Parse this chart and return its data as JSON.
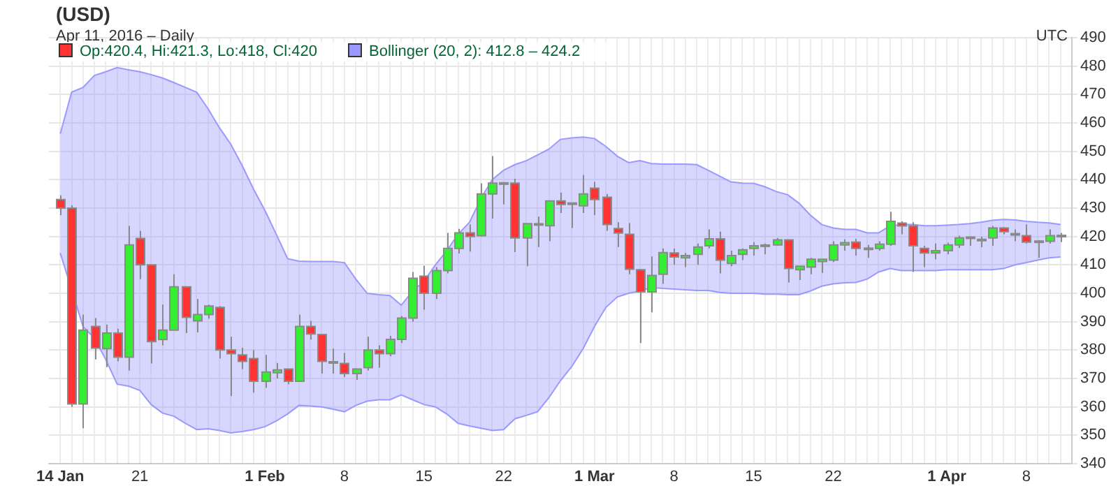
{
  "chart_data": {
    "type": "candlestick",
    "title": "(USD)",
    "subtitle": "Apr 11, 2016 – Daily",
    "annotations": [
      "UTC"
    ],
    "legend": "top left",
    "grid": true,
    "x": [
      "2016-01-14",
      "2016-01-15",
      "2016-01-16",
      "2016-01-17",
      "2016-01-18",
      "2016-01-19",
      "2016-01-20",
      "2016-01-21",
      "2016-01-22",
      "2016-01-23",
      "2016-01-24",
      "2016-01-25",
      "2016-01-26",
      "2016-01-27",
      "2016-01-28",
      "2016-01-29",
      "2016-01-30",
      "2016-01-31",
      "2016-02-01",
      "2016-02-02",
      "2016-02-03",
      "2016-02-04",
      "2016-02-05",
      "2016-02-06",
      "2016-02-07",
      "2016-02-08",
      "2016-02-09",
      "2016-02-10",
      "2016-02-11",
      "2016-02-12",
      "2016-02-13",
      "2016-02-14",
      "2016-02-15",
      "2016-02-16",
      "2016-02-17",
      "2016-02-18",
      "2016-02-19",
      "2016-02-20",
      "2016-02-21",
      "2016-02-22",
      "2016-02-23",
      "2016-02-24",
      "2016-02-25",
      "2016-02-26",
      "2016-02-27",
      "2016-02-28",
      "2016-02-29",
      "2016-03-01",
      "2016-03-02",
      "2016-03-03",
      "2016-03-04",
      "2016-03-05",
      "2016-03-06",
      "2016-03-07",
      "2016-03-08",
      "2016-03-09",
      "2016-03-10",
      "2016-03-11",
      "2016-03-12",
      "2016-03-13",
      "2016-03-14",
      "2016-03-15",
      "2016-03-16",
      "2016-03-17",
      "2016-03-18",
      "2016-03-19",
      "2016-03-20",
      "2016-03-21",
      "2016-03-22",
      "2016-03-23",
      "2016-03-24",
      "2016-03-25",
      "2016-03-26",
      "2016-03-27",
      "2016-03-28",
      "2016-03-29",
      "2016-03-30",
      "2016-03-31",
      "2016-04-01",
      "2016-04-02",
      "2016-04-03",
      "2016-04-04",
      "2016-04-05",
      "2016-04-06",
      "2016-04-07",
      "2016-04-08",
      "2016-04-09",
      "2016-04-10",
      "2016-04-11"
    ],
    "xlim": [
      "2016-01-13",
      "2016-04-12"
    ],
    "xticks": [
      {
        "value": "2016-01-14",
        "label": "14 Jan"
      },
      {
        "value": "2016-01-15",
        "label": null
      },
      {
        "value": "2016-01-16",
        "label": null
      },
      {
        "value": "2016-01-17",
        "label": null
      },
      {
        "value": "2016-01-18",
        "label": null
      },
      {
        "value": "2016-01-19",
        "label": null
      },
      {
        "value": "2016-01-20",
        "label": null
      },
      {
        "value": "2016-01-21",
        "label": "21"
      },
      {
        "value": "2016-01-22",
        "label": null
      },
      {
        "value": "2016-01-23",
        "label": null
      },
      {
        "value": "2016-01-24",
        "label": null
      },
      {
        "value": "2016-01-25",
        "label": null
      },
      {
        "value": "2016-01-26",
        "label": null
      },
      {
        "value": "2016-01-27",
        "label": null
      },
      {
        "value": "2016-01-28",
        "label": null
      },
      {
        "value": "2016-01-29",
        "label": null
      },
      {
        "value": "2016-01-30",
        "label": null
      },
      {
        "value": "2016-01-31",
        "label": null
      },
      {
        "value": "2016-02-01",
        "label": "1 Feb"
      },
      {
        "value": "2016-02-02",
        "label": null
      },
      {
        "value": "2016-02-03",
        "label": null
      },
      {
        "value": "2016-02-04",
        "label": null
      },
      {
        "value": "2016-02-05",
        "label": null
      },
      {
        "value": "2016-02-06",
        "label": null
      },
      {
        "value": "2016-02-07",
        "label": null
      },
      {
        "value": "2016-02-08",
        "label": "8"
      },
      {
        "value": "2016-02-09",
        "label": null
      },
      {
        "value": "2016-02-10",
        "label": null
      },
      {
        "value": "2016-02-11",
        "label": null
      },
      {
        "value": "2016-02-12",
        "label": null
      },
      {
        "value": "2016-02-13",
        "label": null
      },
      {
        "value": "2016-02-14",
        "label": null
      },
      {
        "value": "2016-02-15",
        "label": "15"
      },
      {
        "value": "2016-02-16",
        "label": null
      },
      {
        "value": "2016-02-17",
        "label": null
      },
      {
        "value": "2016-02-18",
        "label": null
      },
      {
        "value": "2016-02-19",
        "label": null
      },
      {
        "value": "2016-02-20",
        "label": null
      },
      {
        "value": "2016-02-21",
        "label": null
      },
      {
        "value": "2016-02-22",
        "label": "22"
      },
      {
        "value": "2016-02-23",
        "label": null
      },
      {
        "value": "2016-02-24",
        "label": null
      },
      {
        "value": "2016-02-25",
        "label": null
      },
      {
        "value": "2016-02-26",
        "label": null
      },
      {
        "value": "2016-02-27",
        "label": null
      },
      {
        "value": "2016-02-28",
        "label": null
      },
      {
        "value": "2016-02-29",
        "label": null
      },
      {
        "value": "2016-03-01",
        "label": "1 Mar"
      },
      {
        "value": "2016-03-02",
        "label": null
      },
      {
        "value": "2016-03-03",
        "label": null
      },
      {
        "value": "2016-03-04",
        "label": null
      },
      {
        "value": "2016-03-05",
        "label": null
      },
      {
        "value": "2016-03-06",
        "label": null
      },
      {
        "value": "2016-03-07",
        "label": null
      },
      {
        "value": "2016-03-08",
        "label": "8"
      },
      {
        "value": "2016-03-09",
        "label": null
      },
      {
        "value": "2016-03-10",
        "label": null
      },
      {
        "value": "2016-03-11",
        "label": null
      },
      {
        "value": "2016-03-12",
        "label": null
      },
      {
        "value": "2016-03-13",
        "label": null
      },
      {
        "value": "2016-03-14",
        "label": null
      },
      {
        "value": "2016-03-15",
        "label": "15"
      },
      {
        "value": "2016-03-16",
        "label": null
      },
      {
        "value": "2016-03-17",
        "label": null
      },
      {
        "value": "2016-03-18",
        "label": null
      },
      {
        "value": "2016-03-19",
        "label": null
      },
      {
        "value": "2016-03-20",
        "label": null
      },
      {
        "value": "2016-03-21",
        "label": null
      },
      {
        "value": "2016-03-22",
        "label": "22"
      },
      {
        "value": "2016-03-23",
        "label": null
      },
      {
        "value": "2016-03-24",
        "label": null
      },
      {
        "value": "2016-03-25",
        "label": null
      },
      {
        "value": "2016-03-26",
        "label": null
      },
      {
        "value": "2016-03-27",
        "label": null
      },
      {
        "value": "2016-03-28",
        "label": null
      },
      {
        "value": "2016-03-29",
        "label": null
      },
      {
        "value": "2016-03-30",
        "label": null
      },
      {
        "value": "2016-03-31",
        "label": null
      },
      {
        "value": "2016-04-01",
        "label": "1 Apr"
      },
      {
        "value": "2016-04-02",
        "label": null
      },
      {
        "value": "2016-04-03",
        "label": null
      },
      {
        "value": "2016-04-04",
        "label": null
      },
      {
        "value": "2016-04-05",
        "label": null
      },
      {
        "value": "2016-04-06",
        "label": null
      },
      {
        "value": "2016-04-07",
        "label": null
      },
      {
        "value": "2016-04-08",
        "label": "8"
      },
      {
        "value": "2016-04-09",
        "label": null
      },
      {
        "value": "2016-04-10",
        "label": null
      },
      {
        "value": "2016-04-11",
        "label": null
      }
    ],
    "ylim": [
      340,
      490
    ],
    "yticks": [
      340,
      350,
      360,
      370,
      380,
      390,
      400,
      410,
      420,
      430,
      440,
      450,
      460,
      470,
      480,
      490
    ],
    "series": [
      {
        "name": "Op:420.4, Hi:421.3, Lo:418, Cl:420",
        "ohlc": [
          [
            433,
            434.5,
            427.5,
            430
          ],
          [
            430,
            431,
            360,
            361
          ],
          [
            361,
            392.5,
            352.5,
            387
          ],
          [
            388.3,
            391.3,
            376.7,
            380.7
          ],
          [
            380.5,
            389,
            374,
            386
          ],
          [
            386,
            387.5,
            376,
            377.5
          ],
          [
            377.5,
            423.7,
            372.8,
            417
          ],
          [
            419.3,
            422,
            405,
            410
          ],
          [
            410,
            410,
            375.3,
            383
          ],
          [
            383.7,
            396,
            381.7,
            387
          ],
          [
            387,
            406.7,
            387,
            402.3
          ],
          [
            402.3,
            402.3,
            386,
            391.5
          ],
          [
            390.3,
            398,
            386.2,
            392.5
          ],
          [
            392.5,
            396,
            391,
            395.5
          ],
          [
            395,
            395.5,
            377,
            380
          ],
          [
            380,
            384.7,
            363.8,
            378.7
          ],
          [
            378.3,
            380.8,
            373.3,
            376
          ],
          [
            377,
            380,
            365,
            369
          ],
          [
            369,
            378.3,
            366.7,
            372.3
          ],
          [
            372,
            375.5,
            370,
            373
          ],
          [
            373.3,
            373.3,
            368,
            369
          ],
          [
            369,
            392.5,
            369,
            388.3
          ],
          [
            388.3,
            390.3,
            383.7,
            385.7
          ],
          [
            385.5,
            385.5,
            371.7,
            376
          ],
          [
            375.9,
            380.5,
            371.7,
            375.8
          ],
          [
            375.3,
            379,
            370.5,
            371.7
          ],
          [
            371.7,
            373.5,
            369.5,
            373.3
          ],
          [
            373.8,
            384.7,
            372.8,
            380
          ],
          [
            380,
            381.7,
            373.8,
            378.7
          ],
          [
            378.7,
            385,
            377.8,
            383.8
          ],
          [
            383.8,
            392,
            382.5,
            391.3
          ],
          [
            391.3,
            407.5,
            390,
            405.3
          ],
          [
            406,
            409.7,
            394.2,
            400
          ],
          [
            400,
            409.2,
            398,
            408
          ],
          [
            408,
            421.3,
            407,
            415.8
          ],
          [
            415.8,
            422.7,
            414,
            421.3
          ],
          [
            421.3,
            424.2,
            414.7,
            420
          ],
          [
            420.3,
            438.7,
            420,
            435
          ],
          [
            435,
            448.3,
            426.3,
            438.8
          ],
          [
            438.9,
            438.9,
            431.3,
            438.7
          ],
          [
            438.8,
            440.3,
            414.5,
            419.5
          ],
          [
            419.5,
            424.5,
            409.5,
            424.5
          ],
          [
            424.2,
            427,
            416.3,
            424.5
          ],
          [
            423.8,
            432.5,
            418.3,
            432.5
          ],
          [
            432.5,
            435.5,
            428.3,
            431.3
          ],
          [
            431.8,
            431.9,
            423,
            431.7
          ],
          [
            430.8,
            441.7,
            428.3,
            435
          ],
          [
            437,
            439.2,
            427.5,
            433
          ],
          [
            433.8,
            435,
            422,
            424.2
          ],
          [
            422.8,
            425,
            416.3,
            421.2
          ],
          [
            420.8,
            424.7,
            406.7,
            408.5
          ],
          [
            408.3,
            408.3,
            382.5,
            400.5
          ],
          [
            400.5,
            413,
            393.3,
            406.3
          ],
          [
            406.7,
            415.8,
            403.3,
            414.3
          ],
          [
            414.2,
            415.8,
            410,
            412.8
          ],
          [
            412.5,
            414.2,
            409.2,
            413.3
          ],
          [
            413.7,
            417.5,
            410,
            416.3
          ],
          [
            416.7,
            422.5,
            415.8,
            419.2
          ],
          [
            419.2,
            421.7,
            407,
            411.7
          ],
          [
            410.5,
            415,
            409.5,
            413.3
          ],
          [
            413.7,
            415.8,
            411.7,
            415.3
          ],
          [
            415.8,
            418,
            413.3,
            416.7
          ],
          [
            416.9,
            417.5,
            413.7,
            417
          ],
          [
            417,
            419.5,
            416.7,
            418.8
          ],
          [
            418.8,
            418.8,
            403.8,
            408.7
          ],
          [
            408.3,
            409.5,
            404.7,
            409.5
          ],
          [
            409.2,
            412.5,
            406.7,
            412
          ],
          [
            411.2,
            412,
            407.2,
            412
          ],
          [
            411.7,
            418.3,
            411,
            417
          ],
          [
            417,
            419,
            415,
            417.8
          ],
          [
            418,
            419.2,
            413.3,
            415.8
          ],
          [
            415.8,
            417,
            412.5,
            415.9
          ],
          [
            415.8,
            418.3,
            415,
            417.3
          ],
          [
            417.3,
            428.7,
            416.7,
            425.3
          ],
          [
            424.7,
            425.3,
            420.8,
            423.7
          ],
          [
            423.7,
            425,
            407.5,
            416.7
          ],
          [
            415.8,
            416.7,
            409.2,
            414.2
          ],
          [
            414.2,
            417.5,
            412,
            415
          ],
          [
            415,
            417.8,
            413.7,
            417
          ],
          [
            417,
            420.3,
            416,
            419.5
          ],
          [
            419.7,
            420,
            416.7,
            419.8
          ],
          [
            418.9,
            420,
            416.2,
            419
          ],
          [
            419.5,
            423.7,
            416.7,
            423
          ],
          [
            423,
            423.3,
            420.8,
            421.7
          ],
          [
            421,
            422.5,
            418.3,
            421
          ],
          [
            420.3,
            424.2,
            417.5,
            418
          ],
          [
            418.3,
            418.7,
            412.5,
            418.4
          ],
          [
            418.3,
            422.5,
            417.5,
            420.3
          ],
          [
            420.4,
            421.3,
            418,
            420
          ]
        ],
        "colors": [
          "#ff3333",
          "#ff3333",
          "#33ee33",
          "#ff3333",
          "#33ee33",
          "#ff3333",
          "#33ee33",
          "#ff3333",
          "#ff3333",
          "#33ee33",
          "#33ee33",
          "#ff3333",
          "#33ee33",
          "#33ee33",
          "#ff3333",
          "#ff3333",
          "#ff3333",
          "#ff3333",
          "#33ee33",
          "#33ee33",
          "#ff3333",
          "#33ee33",
          "#ff3333",
          "#ff3333",
          "#999999",
          "#ff3333",
          "#33ee33",
          "#33ee33",
          "#ff3333",
          "#33ee33",
          "#33ee33",
          "#33ee33",
          "#ff3333",
          "#33ee33",
          "#33ee33",
          "#33ee33",
          "#ff3333",
          "#33ee33",
          "#33ee33",
          "#999999",
          "#ff3333",
          "#33ee33",
          "#999999",
          "#33ee33",
          "#ff3333",
          "#999999",
          "#33ee33",
          "#ff3333",
          "#ff3333",
          "#ff3333",
          "#ff3333",
          "#ff3333",
          "#33ee33",
          "#33ee33",
          "#ff3333",
          "#33ee33",
          "#33ee33",
          "#33ee33",
          "#ff3333",
          "#33ee33",
          "#33ee33",
          "#33ee33",
          "#999999",
          "#33ee33",
          "#ff3333",
          "#33ee33",
          "#33ee33",
          "#33ee33",
          "#33ee33",
          "#33ee33",
          "#ff3333",
          "#999999",
          "#33ee33",
          "#33ee33",
          "#ff3333",
          "#ff3333",
          "#ff3333",
          "#33ee33",
          "#33ee33",
          "#33ee33",
          "#999999",
          "#999999",
          "#33ee33",
          "#ff3333",
          "#999999",
          "#ff3333",
          "#999999",
          "#33ee33",
          "#ff3333"
        ]
      },
      {
        "name": "Bollinger (20, 2): 412.8 – 424.2",
        "type": "area",
        "color": "#9999ff",
        "values": [
          456.2,
          470.8,
          472.5,
          476.7,
          478,
          479.5,
          478.7,
          478,
          477,
          475.8,
          474.2,
          472.5,
          470.8,
          465,
          458.3,
          452.5,
          445,
          436.7,
          429.2,
          420.8,
          412.2,
          411.3,
          411.2,
          411.2,
          411.2,
          410.8,
          405,
          400,
          399.5,
          399.2,
          395.8,
          400.8,
          404.2,
          410,
          415,
          420.8,
          425,
          433.3,
          440,
          443.3,
          445.3,
          446.7,
          448.7,
          450.8,
          454.2,
          454.7,
          455,
          454.5,
          451.7,
          448.3,
          446,
          446.7,
          445.7,
          445.5,
          445.5,
          445.5,
          445.3,
          443.3,
          441.3,
          439.2,
          438.8,
          438.7,
          437.5,
          435.8,
          434.7,
          431.7,
          427.5,
          424.2,
          423,
          422.5,
          422.5,
          421.3,
          421.3,
          423.7,
          424.2,
          424.2,
          423.8,
          423.8,
          424,
          424.2,
          424.5,
          425,
          425.7,
          426,
          425.8,
          425.3,
          425,
          424.8,
          424.2
        ]
      },
      {
        "type": "line",
        "color": "#9999ff",
        "values": [
          414.2,
          null,
          388.3,
          384.2,
          376.7,
          368,
          367.3,
          365.8,
          360.8,
          357.8,
          356.7,
          354.2,
          352,
          352.3,
          351.7,
          350.8,
          351.3,
          352,
          353,
          355,
          357.5,
          360.5,
          360.3,
          360,
          359.2,
          358.3,
          360.5,
          362,
          362.5,
          362.5,
          364.2,
          362.5,
          360.8,
          360,
          357.5,
          354.2,
          353.3,
          352.5,
          351.7,
          352,
          355.8,
          357,
          358.3,
          363.3,
          369.2,
          374.2,
          380.5,
          388.3,
          395,
          398.7,
          400,
          400.8,
          402,
          401.7,
          401.5,
          401.2,
          401,
          401,
          400.3,
          400,
          400,
          400,
          399.7,
          399.7,
          399.5,
          399.5,
          400.8,
          402.5,
          403.3,
          403.7,
          403.8,
          405,
          407.5,
          408.7,
          408,
          408,
          408,
          408,
          408.3,
          408.3,
          408.3,
          408.3,
          408.3,
          408.7,
          410,
          410.8,
          411.7,
          412.5,
          412.8
        ]
      }
    ]
  }
}
